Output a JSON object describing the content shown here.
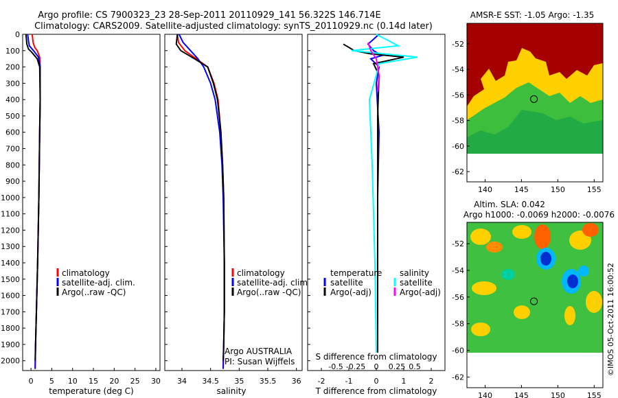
{
  "header": {
    "line1": "Argo profile: CS 7900323_23 28-Sep-2011 20110929_141 56.322S 146.714E",
    "line2": "Climatology: CARS2009. Satellite-adjusted climatology: synTS_20110929.nc (0.14d later)"
  },
  "colors": {
    "climatology": "#ff0000",
    "satellite": "#0000ff",
    "argo": "#000000",
    "sal_satellite": "#00ffff",
    "sal_argo": "#ff00ff"
  },
  "depth_ticks": [
    "0",
    "100",
    "200",
    "300",
    "400",
    "500",
    "600",
    "700",
    "800",
    "900",
    "1000",
    "1100",
    "1200",
    "1300",
    "1400",
    "1500",
    "1600",
    "1700",
    "1800",
    "1900",
    "2000"
  ],
  "chart_data": [
    {
      "type": "line",
      "xlabel": "temperature (deg C)",
      "ylabel": "",
      "xlim": [
        -2,
        31
      ],
      "ylim": [
        2060,
        0
      ],
      "xticks": [
        "0",
        "5",
        "10",
        "15",
        "20",
        "25",
        "30"
      ],
      "legend": [
        "climatology",
        "satellite-adj. clim.",
        "Argo(..raw -QC)"
      ],
      "legend_placement": "lower-right",
      "series": [
        {
          "name": "climatology",
          "x": [
            0.3,
            0.5,
            0.9,
            1.5,
            2.1,
            2.2,
            2.2,
            2.1,
            2.0,
            1.9,
            1.6,
            1.3,
            1.1,
            1.0
          ],
          "y": [
            0,
            50,
            80,
            100,
            140,
            200,
            400,
            600,
            800,
            1000,
            1400,
            1700,
            1900,
            2050
          ]
        },
        {
          "name": "satellite-adj. clim.",
          "x": [
            -0.8,
            -0.6,
            -0.4,
            0.6,
            1.8,
            2.2,
            2.2,
            2.1,
            2.0,
            1.9,
            1.6,
            1.3,
            1.1,
            1.0
          ],
          "y": [
            0,
            40,
            70,
            100,
            140,
            200,
            400,
            600,
            800,
            1000,
            1400,
            1700,
            1900,
            2050
          ]
        },
        {
          "name": "Argo(..raw -QC)",
          "x": [
            -1.2,
            -1.0,
            -0.6,
            0.2,
            1.5,
            2.1,
            2.2,
            2.1,
            2.0,
            1.9,
            1.6,
            1.3,
            1.1,
            1.0
          ],
          "y": [
            0,
            60,
            90,
            110,
            150,
            200,
            400,
            600,
            800,
            1000,
            1400,
            1700,
            1900,
            2000
          ]
        }
      ]
    },
    {
      "type": "line",
      "xlabel": "salinity",
      "ylabel": "",
      "xlim": [
        33.7,
        36.1
      ],
      "ylim": [
        2060,
        0
      ],
      "xticks": [
        "34",
        "34.5",
        "35",
        "35.5",
        "36"
      ],
      "legend": [
        "climatology",
        "satellite-adj. clim.",
        "Argo(..raw -QC)"
      ],
      "legend_placement": "lower-right",
      "annotation": [
        "Argo AUSTRALIA",
        "PI: Susan Wijffels"
      ],
      "series": [
        {
          "name": "climatology",
          "x": [
            33.92,
            33.94,
            34.05,
            34.25,
            34.45,
            34.56,
            34.63,
            34.68,
            34.71,
            34.73,
            34.74,
            34.74,
            34.73,
            34.72
          ],
          "y": [
            0,
            50,
            100,
            150,
            200,
            300,
            400,
            600,
            800,
            1000,
            1400,
            1700,
            1900,
            2050
          ]
        },
        {
          "name": "satellite-adj. clim.",
          "x": [
            33.95,
            34.02,
            34.15,
            34.28,
            34.38,
            34.5,
            34.58,
            34.66,
            34.7,
            34.72,
            34.74,
            34.74,
            34.73,
            34.72
          ],
          "y": [
            0,
            50,
            100,
            150,
            200,
            300,
            400,
            600,
            800,
            1000,
            1400,
            1700,
            1900,
            2050
          ]
        },
        {
          "name": "Argo(..raw -QC)",
          "x": [
            33.92,
            33.9,
            33.98,
            34.22,
            34.45,
            34.55,
            34.62,
            34.68,
            34.71,
            34.73,
            34.74,
            34.74,
            34.73,
            34.72
          ],
          "y": [
            0,
            60,
            100,
            150,
            200,
            300,
            400,
            600,
            800,
            1000,
            1400,
            1700,
            1900,
            2000
          ]
        }
      ]
    },
    {
      "type": "line",
      "xlabel": "T difference from climatology",
      "xlabel_top": "S difference from climatology",
      "ylabel": "",
      "xlim": [
        -2.5,
        2.5
      ],
      "ylim": [
        2060,
        0
      ],
      "xticks": [
        "-2",
        "-1",
        "0",
        "1",
        "2"
      ],
      "xticks_top": [
        "-0.5",
        "-0.25",
        "0",
        "0.25",
        "0.5"
      ],
      "legend": [
        "temperature",
        "satellite",
        "Argo(-adj)",
        "salinity",
        "satellite",
        "Argo(-adj)"
      ],
      "legend_placement": "lower-middle",
      "series": [
        {
          "name": "satellite",
          "x": [
            0.1,
            -0.3,
            -0.1,
            0.2,
            -0.2,
            0.1,
            0.0,
            0.1,
            0.05,
            0.05,
            0.05,
            0.05
          ],
          "y": [
            0,
            60,
            100,
            130,
            150,
            200,
            300,
            600,
            1000,
            1500,
            1800,
            1950
          ]
        },
        {
          "name": "Argo(-adj)",
          "x": [
            -1.2,
            -0.8,
            -0.2,
            1.0,
            -0.1,
            0.1,
            0.05,
            0.05,
            0.05,
            0.05
          ],
          "y": [
            60,
            100,
            120,
            140,
            180,
            250,
            500,
            1000,
            1500,
            1950
          ]
        },
        {
          "name": "satellite",
          "x": [
            0.0,
            0.8,
            -0.9,
            1.5,
            0.1,
            0.0,
            -0.25,
            -0.15,
            -0.05,
            0.0
          ],
          "y": [
            0,
            70,
            100,
            140,
            180,
            250,
            400,
            800,
            1400,
            1950
          ]
        },
        {
          "name": "Argo(-adj)",
          "x": [
            -0.3,
            -0.2,
            0.0,
            0.1,
            0.05
          ],
          "y": [
            50,
            100,
            150,
            250,
            350
          ]
        }
      ]
    },
    {
      "type": "heatmap",
      "title": "AMSR-E SST: -1.05 Argo: -1.35",
      "xticks": [
        "140",
        "145",
        "150",
        "155"
      ],
      "yticks": [
        "-52",
        "-54",
        "-56",
        "-58",
        "-60",
        "-62"
      ],
      "xlim": [
        137.5,
        156.2
      ],
      "ylim": [
        -62.8,
        -50.4
      ],
      "marker": {
        "lon": 146.714,
        "lat": -56.322
      }
    },
    {
      "type": "heatmap",
      "title": "Altim. SLA: 0.042",
      "subtitle": "Argo h1000: -0.0069 h2000: -0.0076",
      "xticks": [
        "140",
        "145",
        "150",
        "155"
      ],
      "yticks": [
        "-52",
        "-54",
        "-56",
        "-58",
        "-60",
        "-62"
      ],
      "xlim": [
        137.5,
        156.2
      ],
      "ylim": [
        -62.8,
        -50.4
      ],
      "marker": {
        "lon": 146.714,
        "lat": -56.322
      }
    }
  ],
  "footer": {
    "stamp": "©IMOS 05-Oct-2011 16:00:52"
  }
}
